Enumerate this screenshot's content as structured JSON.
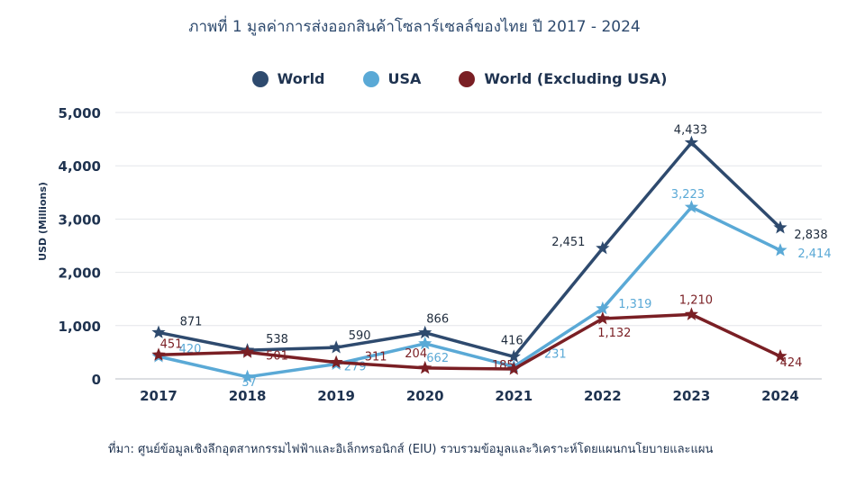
{
  "title": "ภาพที่ 1 มูลค่าการส่งออกสินค้าโซลาร์เซลล์ของไทย ปี 2017 - 2024",
  "source": "ที่มา: ศูนย์ข้อมูลเชิงลึกอุตสาหกรรมไฟฟ้าและอิเล็กทรอนิกส์ (EIU) รวบรวมข้อมูลและวิเคราะห์โดยแผนกนโยบายและแผน",
  "chart_data": {
    "type": "line",
    "ylabel": "USD (Millions)",
    "xlabel": "",
    "ylim": [
      0,
      5000
    ],
    "yticks": [
      "0",
      "1,000",
      "2,000",
      "3,000",
      "4,000",
      "5,000"
    ],
    "grid": true,
    "legend_position": "top",
    "categories": [
      "2017",
      "2018",
      "2019",
      "2020",
      "2021",
      "2022",
      "2023",
      "2024"
    ],
    "series": [
      {
        "name": "World",
        "color": "#2e4a6e",
        "values": [
          871,
          538,
          590,
          866,
          416,
          2451,
          4433,
          2838
        ],
        "labels": [
          "871",
          "538",
          "590",
          "866",
          "416",
          "2,451",
          "4,433",
          "2,838"
        ]
      },
      {
        "name": "USA",
        "color": "#5aa9d6",
        "values": [
          420,
          37,
          279,
          662,
          231,
          1319,
          3223,
          2414
        ],
        "labels": [
          "420",
          "37",
          "279",
          "662",
          "231",
          "1,319",
          "3,223",
          "2,414"
        ]
      },
      {
        "name": "World (Excluding USA)",
        "color": "#7a1f24",
        "values": [
          451,
          501,
          311,
          204,
          185,
          1132,
          1210,
          424
        ],
        "labels": [
          "451",
          "501",
          "311",
          "204",
          "185",
          "1,132",
          "1,210",
          "424"
        ]
      }
    ]
  }
}
